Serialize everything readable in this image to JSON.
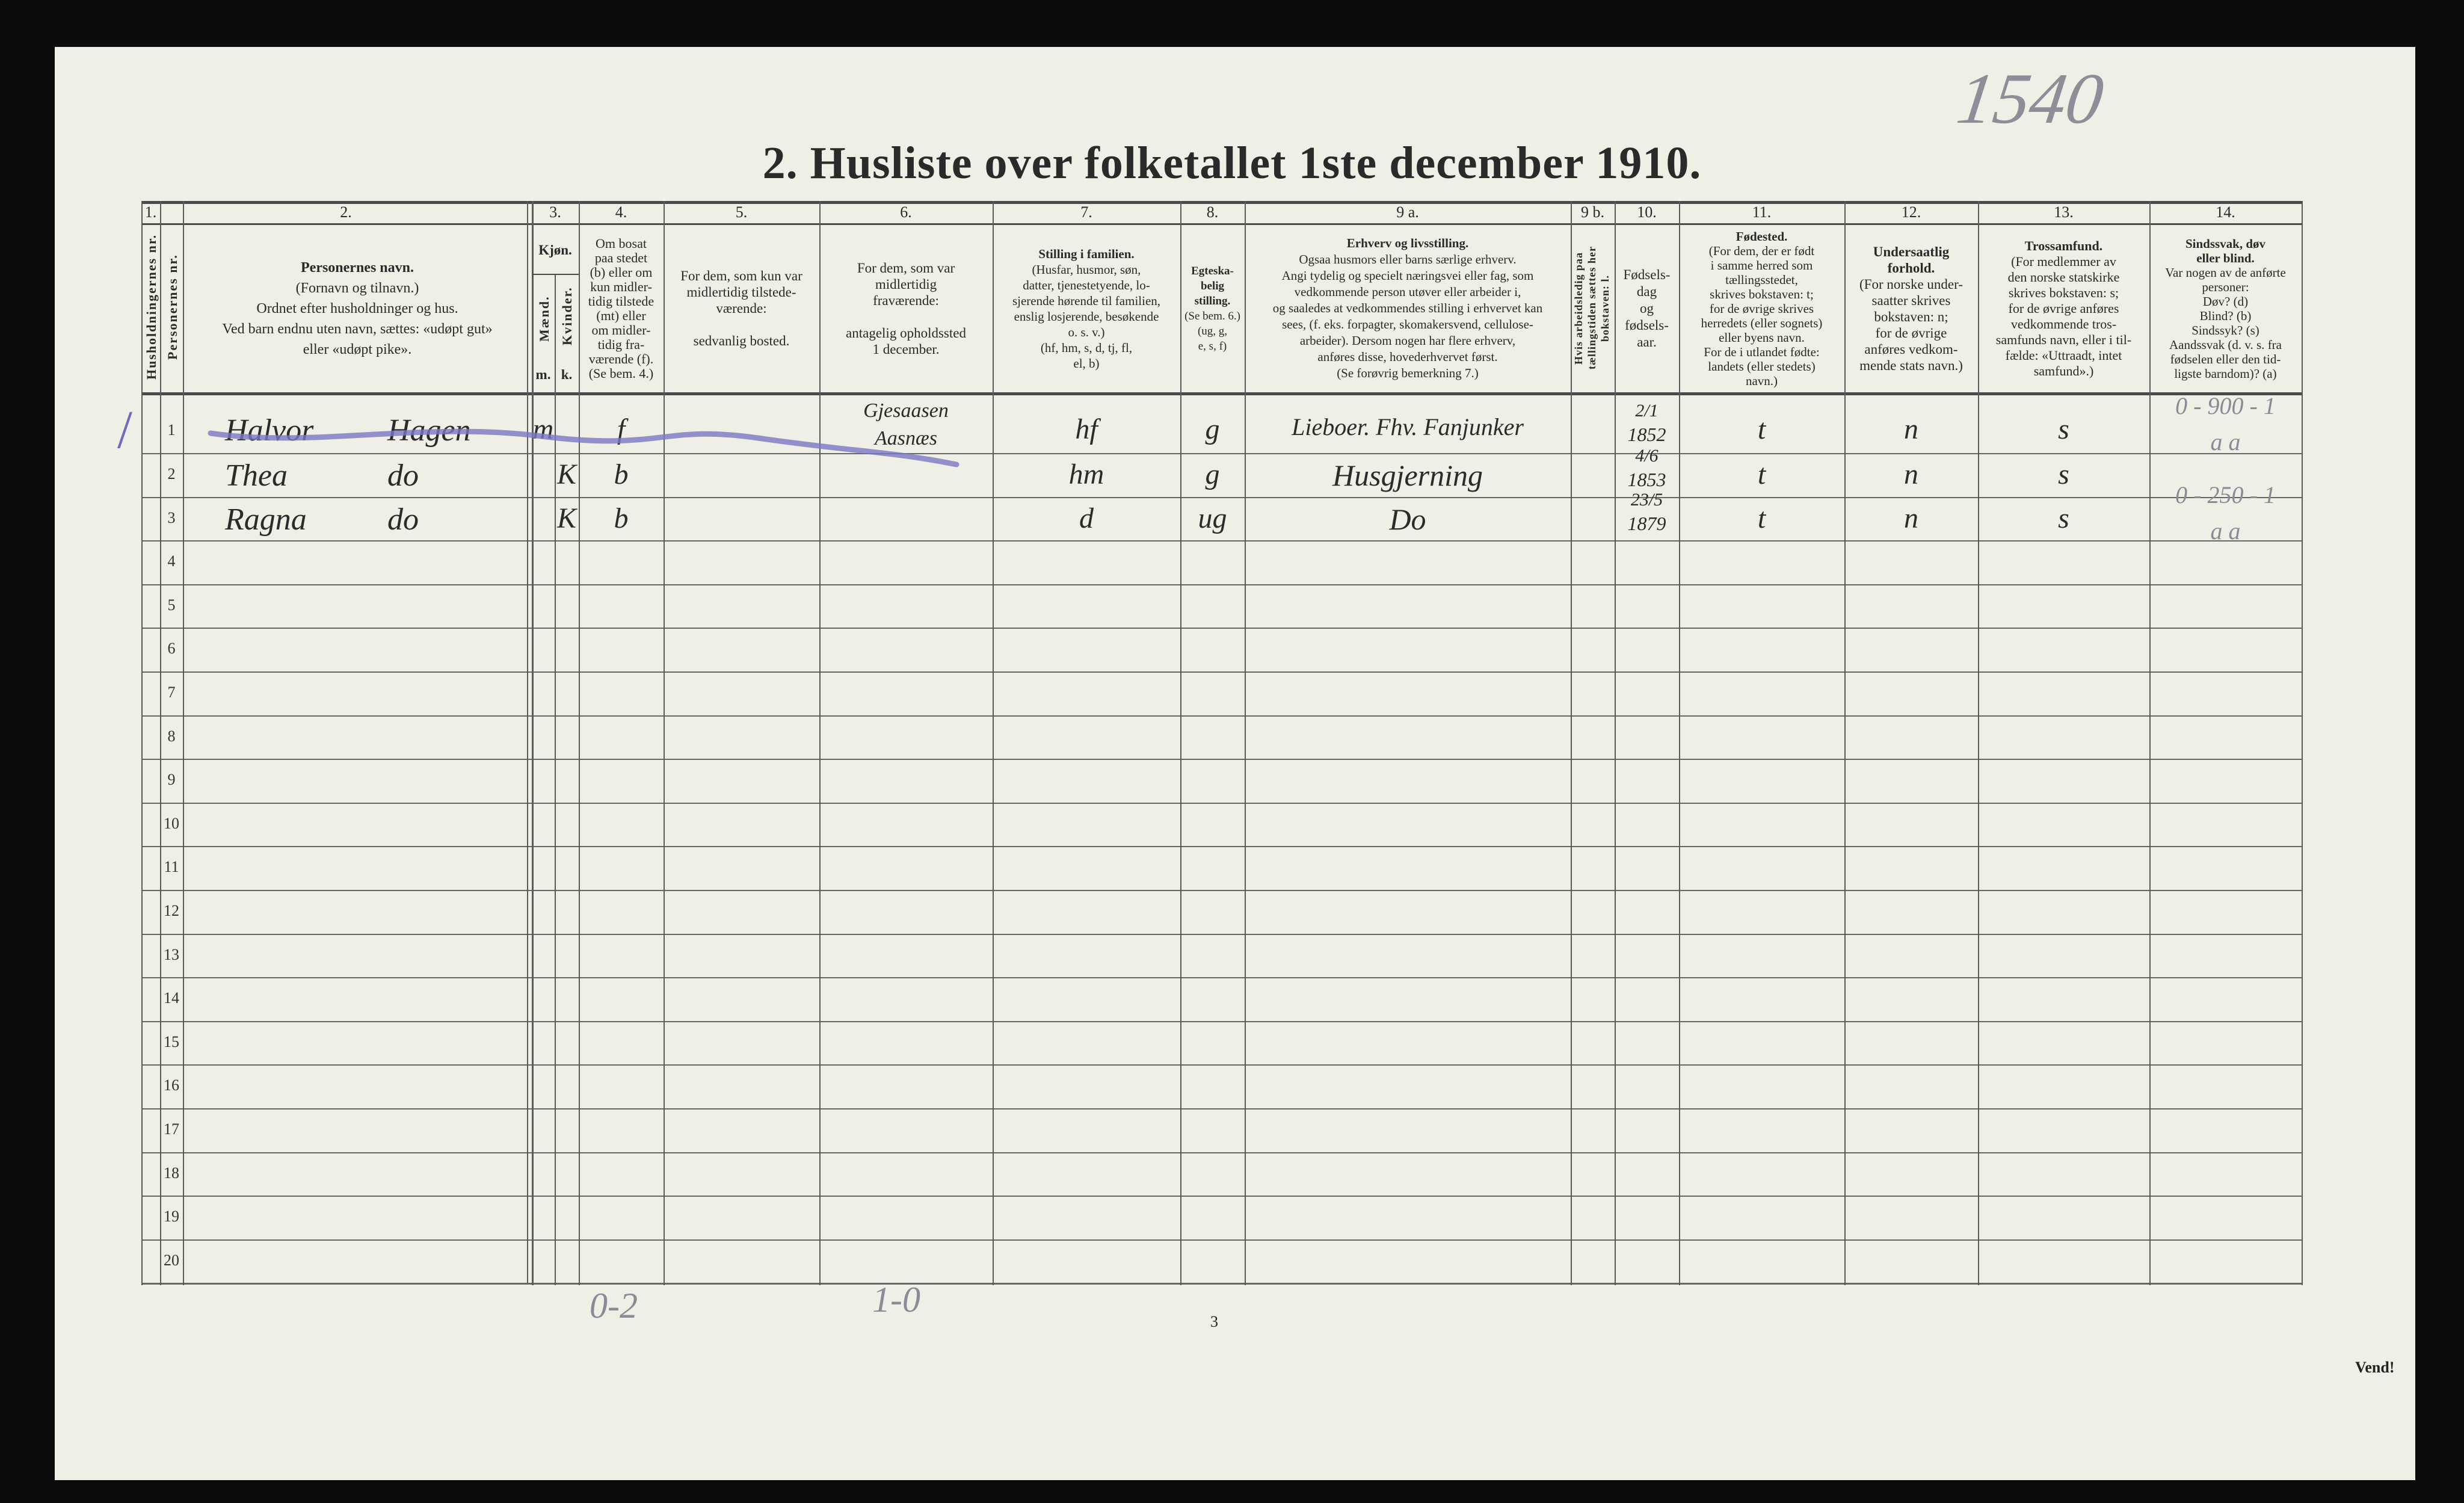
{
  "page": {
    "title": "2.  Husliste over folketallet 1ste december 1910.",
    "archive_number": "1540",
    "page_number": "3",
    "turn_note": "Vend!",
    "bottom_tallies": [
      "0-2",
      "1-0"
    ],
    "margin_mark": "/"
  },
  "colors": {
    "paper": "#f0efe5",
    "ink": "#2b2b2b",
    "purple_crayon": "#7b77c4",
    "pencil": "#8a8b98"
  },
  "header": {
    "col1_num": "1.",
    "col1_a": "Husholdningernes nr.",
    "col1_b": "Personernes nr.",
    "col2_num": "2.",
    "col2_title": "Personernes navn.",
    "col2_text": "(Fornavn og tilnavn.)\nOrdnet efter husholdninger og hus.\nVed barn endnu uten navn, sættes: «udøpt gut»\neller «udøpt pike».",
    "col3_num": "3.",
    "col3_title": "Kjøn.",
    "col3_m": "Mænd.",
    "col3_k": "Kvinder.",
    "col3_m_abbr": "m.",
    "col3_k_abbr": "k.",
    "col4_num": "4.",
    "col4_text": "Om bosat\npaa stedet\n(b) eller om\nkun midler-\ntidig tilstede\n(mt) eller\nom midler-\ntidig fra-\nværende (f).\n(Se bem. 4.)",
    "col5_num": "5.",
    "col5_text": "For dem, som kun var\nmidlertidig tilstede-\nværende:\n\nsedvanlig bosted.",
    "col6_num": "6.",
    "col6_text": "For dem, som var\nmidlertidig\nfraværende:\n\nantagelig opholdssted\n1 december.",
    "col7_num": "7.",
    "col7_title": "Stilling i familien.",
    "col7_text": "(Husfar, husmor, søn,\ndatter, tjenestetyende, lo-\nsjerende hørende til familien,\nenslig losjerende, besøkende\no. s. v.)\n(hf, hm, s, d, tj, fl,\nel, b)",
    "col8_num": "8.",
    "col8_title": "Egteska-\nbelig\nstilling.",
    "col8_text": "(Se bem. 6.)\n(ug, g,\ne, s, f)",
    "col9a_num": "9 a.",
    "col9a_title": "Erhverv og livsstilling.",
    "col9a_text": "Ogsaa husmors eller barns særlige erhverv.\nAngi tydelig og specielt næringsvei eller fag, som\nvedkommende person utøver eller arbeider i,\nog saaledes at vedkommendes stilling i erhvervet kan\nsees, (f. eks. forpagter, skomakersvend, cellulose-\narbeider). Dersom nogen har flere erhverv,\nanføres disse, hovederhvervet først.\n(Se forøvrig bemerkning 7.)",
    "col9b_num": "9 b.",
    "col9b_text": "Hvis arbeidsledig paa tællingstiden sættes her bokstaven: l.",
    "col10_num": "10.",
    "col10_text": "Fødsels-\ndag\nog\nfødsels-\naar.",
    "col11_num": "11.",
    "col11_title": "Fødested.",
    "col11_text": "(For dem, der er født\ni samme herred som\ntællingsstedet,\nskrives bokstaven: t;\nfor de øvrige skrives\nherredets (eller sognets)\neller byens navn.\nFor de i utlandet fødte:\nlandets (eller stedets)\nnavn.)",
    "col12_num": "12.",
    "col12_title": "Undersaatlig\nforhold.",
    "col12_text": "(For norske under-\nsaatter skrives\nbokstaven: n;\nfor de øvrige\nanføres vedkom-\nmende stats navn.)",
    "col13_num": "13.",
    "col13_title": "Trossamfund.",
    "col13_text": "(For medlemmer av\nden norske statskirke\nskrives bokstaven: s;\nfor de øvrige anføres\nvedkommende tros-\nsamfunds navn, eller i til-\nfælde: «Uttraadt, intet\nsamfund».)",
    "col14_num": "14.",
    "col14_title": "Sindssvak, døv\neller blind.",
    "col14_text": "Var nogen av de anførte\npersoner:\nDøv?        (d)\nBlind?      (b)\nSindssyk? (s)\nAandssvak (d. v. s. fra\nfødselen eller den tid-\nligste barndom)? (a)"
  },
  "row_numbers": [
    "1",
    "2",
    "3",
    "4",
    "5",
    "6",
    "7",
    "8",
    "9",
    "10",
    "11",
    "12",
    "13",
    "14",
    "15",
    "16",
    "17",
    "18",
    "19",
    "20"
  ],
  "rows": [
    {
      "first_name": "Halvor",
      "last_name": "Hagen",
      "sex": "m",
      "residence": "f",
      "absent_location": "Gjesaasen\nAasnæs",
      "family_position": "hf",
      "marital": "g",
      "occupation": "Lieboer. Fhv. Fanjunker",
      "birth_day": "2/1",
      "birth_year": "1852",
      "birthplace": "t",
      "citizenship": "n",
      "religion": "s",
      "note": "0 - 900 - 1",
      "note2": "a   a",
      "struck_out": true
    },
    {
      "first_name": "Thea",
      "last_name": "do",
      "sex": "K",
      "residence": "b",
      "absent_location": "",
      "family_position": "hm",
      "marital": "g",
      "occupation": "Husgjerning",
      "birth_day": "4/6",
      "birth_year": "1853",
      "birthplace": "t",
      "citizenship": "n",
      "religion": "s",
      "note": "",
      "note2": "",
      "struck_out": false
    },
    {
      "first_name": "Ragna",
      "last_name": "do",
      "sex": "K",
      "residence": "b",
      "absent_location": "",
      "family_position": "d",
      "marital": "ug",
      "occupation": "Do",
      "birth_day": "23/5",
      "birth_year": "1879",
      "birthplace": "t",
      "citizenship": "n",
      "religion": "s",
      "note": "0 - 250 - 1",
      "note2": "a   a",
      "struck_out": false
    }
  ]
}
